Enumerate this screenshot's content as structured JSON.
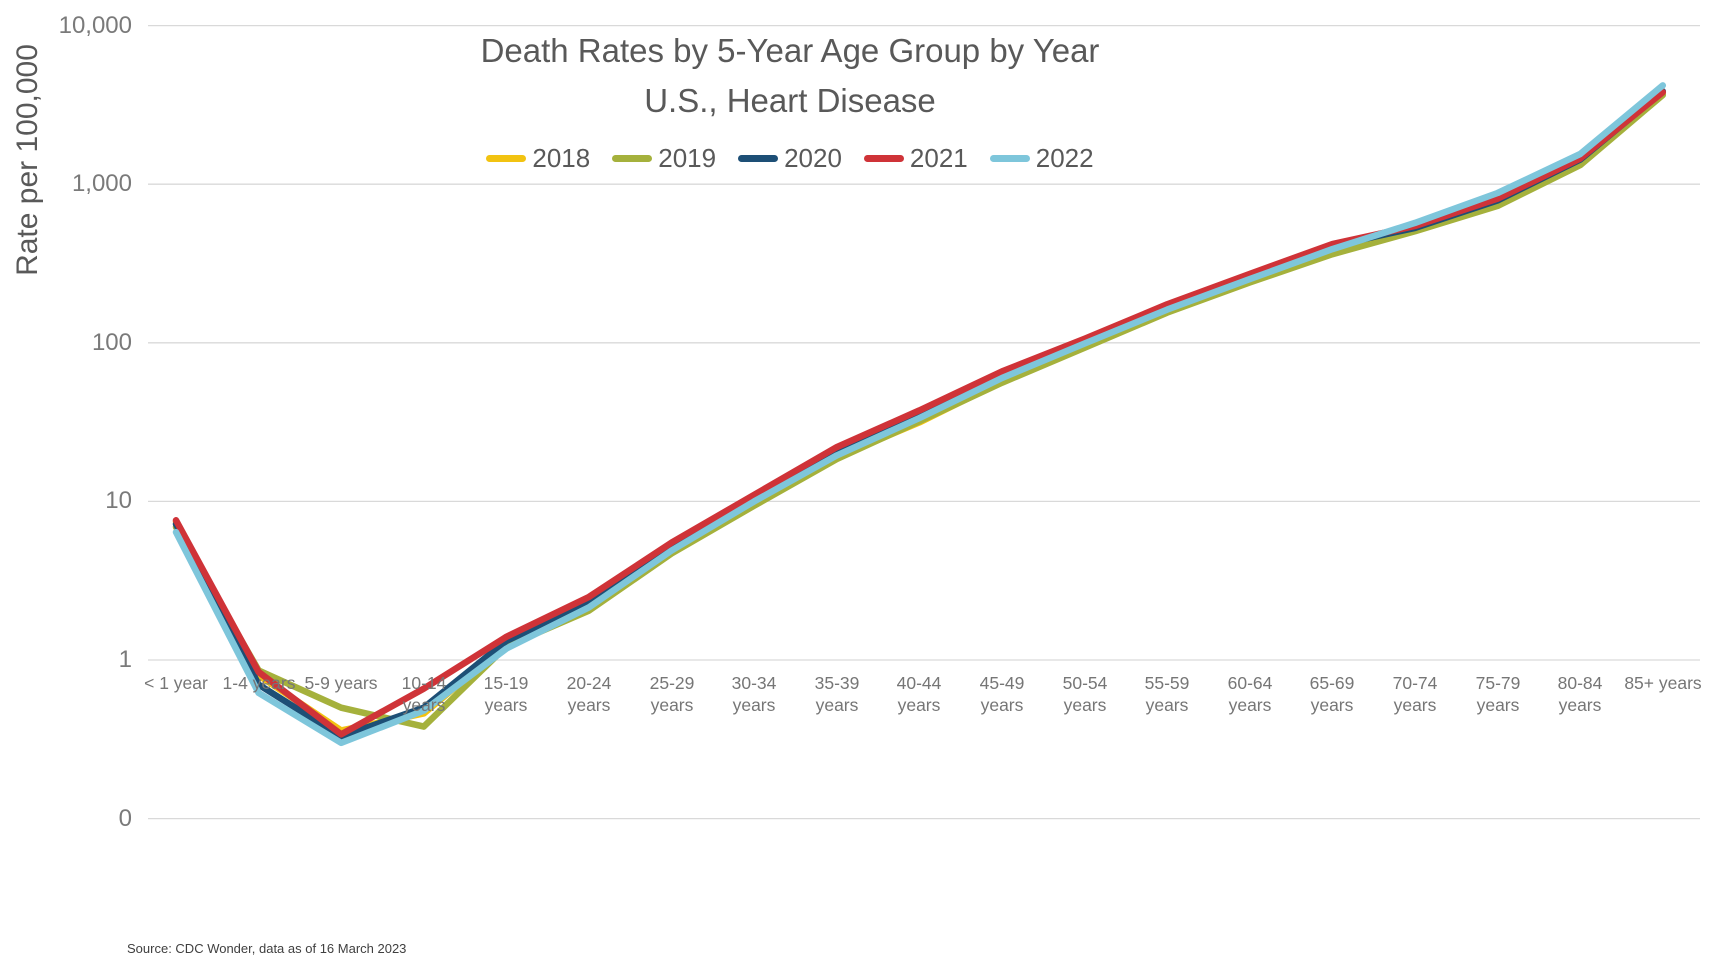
{
  "title": {
    "line1": "Death Rates by 5-Year Age Group by Year",
    "line2": "U.S., Heart Disease"
  },
  "y_axis": {
    "title": "Rate per 100,000",
    "ticks": [
      {
        "label": "10,000",
        "value": 10000
      },
      {
        "label": "1,000",
        "value": 1000
      },
      {
        "label": "100",
        "value": 100
      },
      {
        "label": "10",
        "value": 10
      },
      {
        "label": "1",
        "value": 1
      },
      {
        "label": "0",
        "value": 0.1
      }
    ]
  },
  "source": "Source: CDC Wonder, data as of 16 March 2023",
  "colors": {
    "gridline": "#d9d9d9",
    "title_text": "#595959",
    "tick_text": "#7a7a7a",
    "series_2018": "#F2C311",
    "series_2019": "#A5B13C",
    "series_2020": "#1D4F76",
    "series_2021": "#CF3338",
    "series_2022": "#7EC6DB"
  },
  "chart_data": {
    "type": "line",
    "title": "Death Rates by 5-Year Age Group by Year — U.S., Heart Disease",
    "xlabel": "",
    "ylabel": "Rate per 100,000",
    "y_scale": "log",
    "ylim": [
      0.1,
      10000
    ],
    "grid": "horizontal",
    "legend_position": "top-center",
    "categories": [
      "< 1 year",
      "1-4 years",
      "5-9 years",
      "10-14 years",
      "15-19 years",
      "20-24 years",
      "25-29 years",
      "30-34 years",
      "35-39 years",
      "40-44 years",
      "45-49 years",
      "50-54 years",
      "55-59 years",
      "60-64 years",
      "65-69 years",
      "70-74 years",
      "75-79 years",
      "80-84 years",
      "85+ years"
    ],
    "series": [
      {
        "name": "2018",
        "color": "#F2C311",
        "values": [
          7.45,
          0.8,
          0.36,
          0.46,
          1.25,
          2.1,
          4.8,
          9.6,
          19.0,
          31.5,
          57,
          97,
          158,
          245,
          372,
          515,
          745,
          1370,
          3700
        ]
      },
      {
        "name": "2019",
        "color": "#A5B13C",
        "values": [
          6.9,
          0.86,
          0.5,
          0.38,
          1.22,
          2.05,
          4.7,
          9.4,
          18.5,
          32.0,
          56,
          93,
          155,
          240,
          362,
          505,
          730,
          1320,
          3650
        ]
      },
      {
        "name": "2020",
        "color": "#1D4F76",
        "values": [
          7.2,
          0.7,
          0.33,
          0.5,
          1.32,
          2.3,
          5.1,
          10.3,
          20.0,
          35.0,
          64,
          103,
          171,
          265,
          408,
          530,
          790,
          1430,
          3850
        ]
      },
      {
        "name": "2021",
        "color": "#CF3338",
        "values": [
          7.6,
          0.84,
          0.34,
          0.66,
          1.4,
          2.5,
          5.5,
          11.0,
          22.0,
          37.5,
          66,
          106,
          175,
          272,
          420,
          545,
          810,
          1450,
          3800
        ]
      },
      {
        "name": "2022",
        "color": "#7EC6DB",
        "values": [
          6.4,
          0.62,
          0.3,
          0.48,
          1.18,
          2.15,
          4.9,
          10.0,
          19.5,
          33.5,
          60,
          99,
          162,
          252,
          390,
          570,
          880,
          1550,
          4200
        ]
      }
    ]
  }
}
